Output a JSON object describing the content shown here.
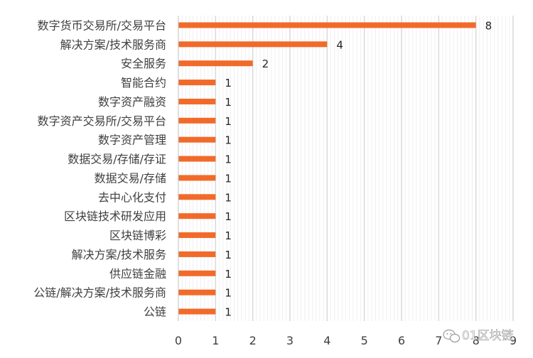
{
  "chart_data": {
    "type": "bar",
    "orientation": "horizontal",
    "categories": [
      "数字货币交易所/交易平台",
      "解决方案/技术服务商",
      "安全服务",
      "智能合约",
      "数字资产融资",
      "数字资产交易所/交易平台",
      "数字资产管理",
      "数据交易/存储/存证",
      "数据交易/存储",
      "去中心化支付",
      "区块链技术研发应用",
      "区块链博彩",
      "解决方案/技术服务",
      "供应链金融",
      "公链/解决方案/技术服务商",
      "公链"
    ],
    "values": [
      8,
      4,
      2,
      1,
      1,
      1,
      1,
      1,
      1,
      1,
      1,
      1,
      1,
      1,
      1,
      1
    ],
    "xlim": [
      0,
      9
    ],
    "x_ticks": [
      "0",
      "1",
      "2",
      "3",
      "4",
      "5",
      "6",
      "7",
      "8",
      "9"
    ],
    "grid": true,
    "bar_color": "#f26a2a",
    "data_labels": true,
    "title": "",
    "xlabel": "",
    "ylabel": ""
  },
  "watermark": {
    "text": "01区块链",
    "icon": "wechat-icon"
  }
}
